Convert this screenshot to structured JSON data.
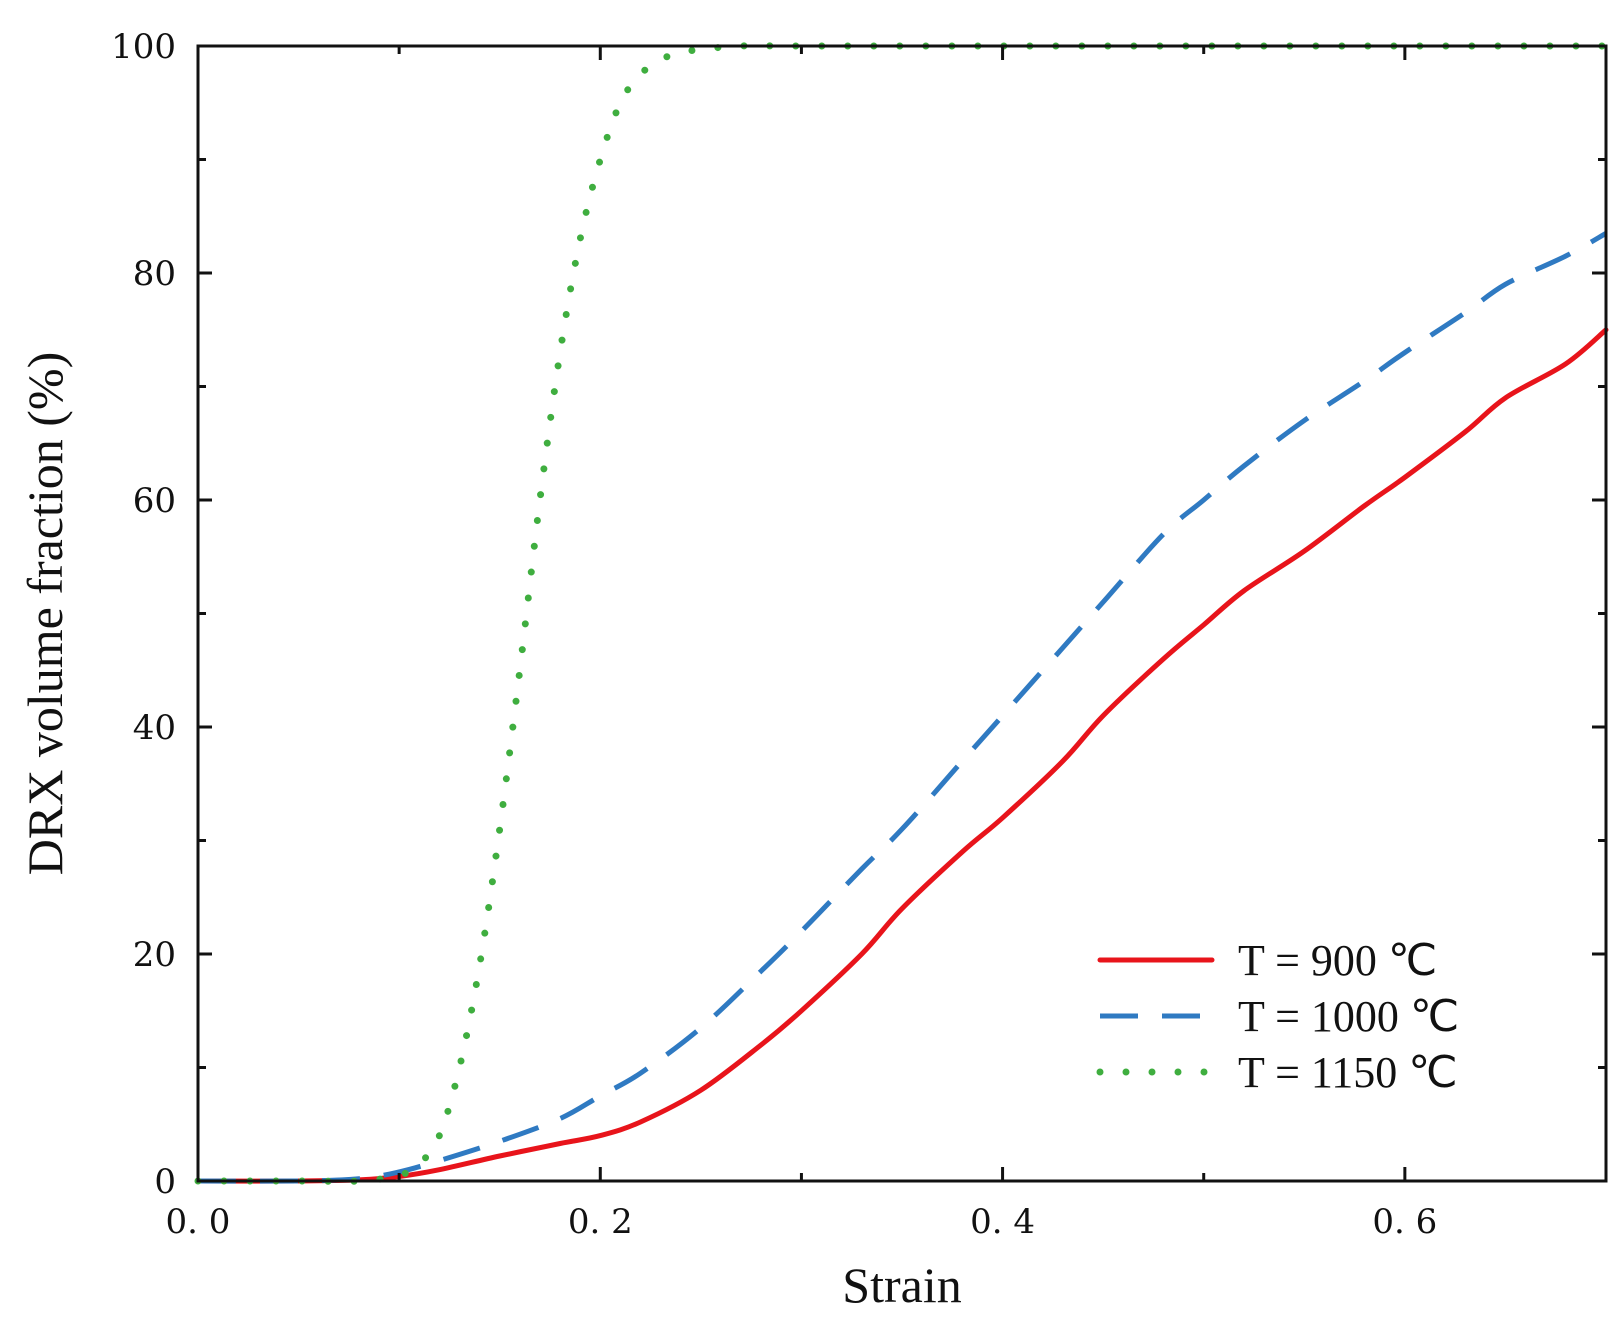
{
  "chart_data": {
    "type": "line",
    "title": "",
    "xlabel": "Strain",
    "ylabel": "DRX volume fraction (%)",
    "xlim": [
      0,
      0.7
    ],
    "ylim": [
      0,
      100
    ],
    "x_major_ticks": [
      0.0,
      0.2,
      0.4,
      0.6
    ],
    "x_tick_labels": [
      "0. 0",
      "0. 2",
      "0. 4",
      "0. 6"
    ],
    "x_minor_ticks": [
      0.1,
      0.3,
      0.5
    ],
    "y_major_ticks": [
      0,
      20,
      40,
      60,
      80,
      100
    ],
    "y_tick_labels": [
      "0",
      "20",
      "40",
      "60",
      "80",
      "100"
    ],
    "y_minor_ticks": [
      10,
      30,
      50,
      70,
      90
    ],
    "grid": false,
    "legend_position": "bottom-right",
    "series": [
      {
        "name": "T = 900 ℃",
        "color": "#e8141b",
        "style": "solid",
        "x": [
          0.0,
          0.05,
          0.08,
          0.1,
          0.12,
          0.15,
          0.18,
          0.2,
          0.22,
          0.25,
          0.28,
          0.3,
          0.33,
          0.35,
          0.38,
          0.4,
          0.43,
          0.45,
          0.48,
          0.5,
          0.52,
          0.55,
          0.58,
          0.6,
          0.63,
          0.65,
          0.68,
          0.7
        ],
        "y": [
          0,
          0,
          0.1,
          0.4,
          1.0,
          2.2,
          3.3,
          4.0,
          5.2,
          8.0,
          12.0,
          15.0,
          20.0,
          24.0,
          29.0,
          32.0,
          37.0,
          41.0,
          46.0,
          49.0,
          52.0,
          55.5,
          59.5,
          62.0,
          66.0,
          69.0,
          72.0,
          75.0
        ]
      },
      {
        "name": "T = 1000 ℃",
        "color": "#2f7ac2",
        "style": "dashed",
        "x": [
          0.0,
          0.05,
          0.08,
          0.1,
          0.12,
          0.15,
          0.18,
          0.2,
          0.22,
          0.25,
          0.28,
          0.3,
          0.33,
          0.35,
          0.38,
          0.4,
          0.43,
          0.45,
          0.48,
          0.5,
          0.52,
          0.55,
          0.58,
          0.6,
          0.63,
          0.65,
          0.68,
          0.7
        ],
        "y": [
          0,
          0,
          0.2,
          0.8,
          1.8,
          3.5,
          5.5,
          7.5,
          9.5,
          13.5,
          18.5,
          22.0,
          27.5,
          31.0,
          37.0,
          41.0,
          47.0,
          51.0,
          57.0,
          60.0,
          63.0,
          67.0,
          70.5,
          73.0,
          76.5,
          79.0,
          81.5,
          83.5
        ]
      },
      {
        "name": "T = 1150 ℃",
        "color": "#3fae3f",
        "style": "dotted",
        "x": [
          0.0,
          0.05,
          0.08,
          0.1,
          0.11,
          0.12,
          0.13,
          0.14,
          0.15,
          0.16,
          0.17,
          0.18,
          0.19,
          0.2,
          0.21,
          0.22,
          0.23,
          0.24,
          0.25,
          0.27,
          0.3,
          0.4,
          0.5,
          0.6,
          0.7
        ],
        "y": [
          0,
          0,
          0,
          0.5,
          1.5,
          4.0,
          10.0,
          19.0,
          31.0,
          45.0,
          60.0,
          73.0,
          83.0,
          90.0,
          95.0,
          97.5,
          98.8,
          99.4,
          99.7,
          100,
          100,
          100,
          100,
          100,
          100
        ]
      }
    ]
  }
}
